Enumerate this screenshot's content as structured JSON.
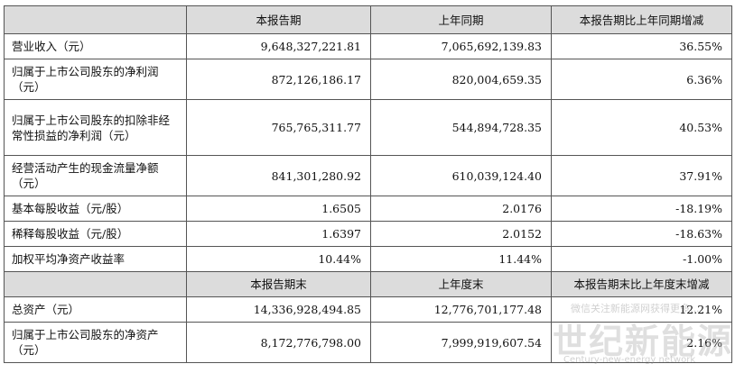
{
  "header": [
    "",
    "本报告期",
    "上年同期",
    "本报告期比上年同期增减"
  ],
  "rows": [
    {
      "label": "营业收入（元）",
      "current": "9,648,327,221.81",
      "prior": "7,065,692,139.83",
      "change": "36.55%"
    },
    {
      "label": "归属于上市公司股东的净利润（元）",
      "current": "872,126,186.17",
      "prior": "820,004,659.35",
      "change": "6.36%"
    },
    {
      "label": "归属于上市公司股东的扣除非经常性损益的净利润（元）",
      "current": "765,765,311.77",
      "prior": "544,894,728.35",
      "change": "40.53%"
    },
    {
      "label": "经营活动产生的现金流量净额（元）",
      "current": "841,301,280.92",
      "prior": "610,039,124.40",
      "change": "37.91%"
    },
    {
      "label": "基本每股收益（元/股）",
      "current": "1.6505",
      "prior": "2.0176",
      "change": "-18.19%"
    },
    {
      "label": "稀释每股收益（元/股）",
      "current": "1.6397",
      "prior": "2.0152",
      "change": "-18.63%"
    },
    {
      "label": "加权平均净资产收益率",
      "current": "10.44%",
      "prior": "11.44%",
      "change": "-1.00%"
    }
  ],
  "header2": [
    "",
    "本报告期末",
    "上年度末",
    "本报告期末比上年度末增减"
  ],
  "rows2": [
    {
      "label": "总资产（元）",
      "current": "14,336,928,494.85",
      "prior": "12,776,701,177.48",
      "change": "12.21%"
    },
    {
      "label": "归属于上市公司股东的净资产（元）",
      "current": "8,172,776,798.00",
      "prior": "7,999,919,607.54",
      "change": "2.16%"
    }
  ],
  "watermark": {
    "top": "微信关注新能源网获得更多...",
    "main": "世纪新能源网",
    "url": "Century-new-energy network"
  }
}
